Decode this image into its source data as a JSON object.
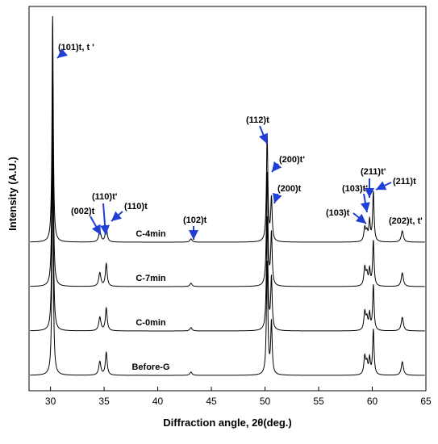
{
  "chart_data": {
    "type": "line",
    "title": "",
    "xlabel": "Diffraction angle, 2θ(deg.)",
    "ylabel": "Intensity (A.U.)",
    "xlim": [
      28,
      65
    ],
    "x_ticks": [
      30,
      35,
      40,
      45,
      50,
      55,
      60,
      65
    ],
    "y_ticks_shown": false,
    "line_color": "#000000",
    "arrow_color": "#1f3fd6",
    "series": [
      {
        "name": "C-4min",
        "peaks": [
          {
            "x": 30.2,
            "h": 1.0,
            "w": 0.07
          },
          {
            "x": 34.6,
            "h": 0.05,
            "w": 0.12
          },
          {
            "x": 35.2,
            "h": 0.07,
            "w": 0.1
          },
          {
            "x": 43.1,
            "h": 0.015,
            "w": 0.12
          },
          {
            "x": 50.2,
            "h": 0.47,
            "w": 0.08
          },
          {
            "x": 50.6,
            "h": 0.19,
            "w": 0.08
          },
          {
            "x": 59.3,
            "h": 0.06,
            "w": 0.1
          },
          {
            "x": 59.5,
            "h": 0.04,
            "w": 0.1
          },
          {
            "x": 59.75,
            "h": 0.09,
            "w": 0.08
          },
          {
            "x": 60.1,
            "h": 0.22,
            "w": 0.08
          },
          {
            "x": 62.8,
            "h": 0.05,
            "w": 0.12
          }
        ]
      },
      {
        "name": "C-7min",
        "peaks": [
          {
            "x": 30.2,
            "h": 1.0,
            "w": 0.07
          },
          {
            "x": 34.6,
            "h": 0.06,
            "w": 0.12
          },
          {
            "x": 35.2,
            "h": 0.1,
            "w": 0.1
          },
          {
            "x": 43.1,
            "h": 0.015,
            "w": 0.12
          },
          {
            "x": 50.2,
            "h": 0.5,
            "w": 0.08
          },
          {
            "x": 50.6,
            "h": 0.23,
            "w": 0.08
          },
          {
            "x": 59.3,
            "h": 0.08,
            "w": 0.1
          },
          {
            "x": 59.5,
            "h": 0.05,
            "w": 0.1
          },
          {
            "x": 59.75,
            "h": 0.07,
            "w": 0.08
          },
          {
            "x": 60.1,
            "h": 0.2,
            "w": 0.08
          },
          {
            "x": 62.8,
            "h": 0.06,
            "w": 0.12
          }
        ]
      },
      {
        "name": "C-0min",
        "peaks": [
          {
            "x": 30.2,
            "h": 1.0,
            "w": 0.07
          },
          {
            "x": 34.6,
            "h": 0.06,
            "w": 0.12
          },
          {
            "x": 35.2,
            "h": 0.1,
            "w": 0.1
          },
          {
            "x": 43.1,
            "h": 0.015,
            "w": 0.12
          },
          {
            "x": 50.2,
            "h": 0.5,
            "w": 0.08
          },
          {
            "x": 50.6,
            "h": 0.23,
            "w": 0.08
          },
          {
            "x": 59.3,
            "h": 0.08,
            "w": 0.1
          },
          {
            "x": 59.5,
            "h": 0.05,
            "w": 0.1
          },
          {
            "x": 59.75,
            "h": 0.07,
            "w": 0.08
          },
          {
            "x": 60.1,
            "h": 0.2,
            "w": 0.08
          },
          {
            "x": 62.8,
            "h": 0.06,
            "w": 0.12
          }
        ]
      },
      {
        "name": "Before-G",
        "peaks": [
          {
            "x": 30.2,
            "h": 1.0,
            "w": 0.07
          },
          {
            "x": 34.6,
            "h": 0.06,
            "w": 0.12
          },
          {
            "x": 35.2,
            "h": 0.1,
            "w": 0.1
          },
          {
            "x": 43.1,
            "h": 0.015,
            "w": 0.12
          },
          {
            "x": 50.2,
            "h": 0.5,
            "w": 0.08
          },
          {
            "x": 50.6,
            "h": 0.23,
            "w": 0.08
          },
          {
            "x": 59.3,
            "h": 0.08,
            "w": 0.1
          },
          {
            "x": 59.5,
            "h": 0.05,
            "w": 0.1
          },
          {
            "x": 59.75,
            "h": 0.07,
            "w": 0.08
          },
          {
            "x": 60.1,
            "h": 0.2,
            "w": 0.08
          },
          {
            "x": 62.8,
            "h": 0.06,
            "w": 0.12
          }
        ]
      }
    ],
    "annotations": [
      {
        "label": "(101)t, t '",
        "x": 30.2
      },
      {
        "label": "(002)t",
        "x": 34.6
      },
      {
        "label": "(110)t'",
        "x": 34.9
      },
      {
        "label": "(110)t",
        "x": 35.2
      },
      {
        "label": "(102)t",
        "x": 43.1
      },
      {
        "label": "(112)t",
        "x": 50.2
      },
      {
        "label": "(200)t'",
        "x": 50.4
      },
      {
        "label": "(200)t",
        "x": 50.6
      },
      {
        "label": "(103)t",
        "x": 59.3
      },
      {
        "label": "(103)t'",
        "x": 59.5
      },
      {
        "label": "(211)t'",
        "x": 59.75
      },
      {
        "label": "(211)t",
        "x": 60.1
      },
      {
        "label": "(202)t, t'",
        "x": 62.8
      }
    ]
  }
}
